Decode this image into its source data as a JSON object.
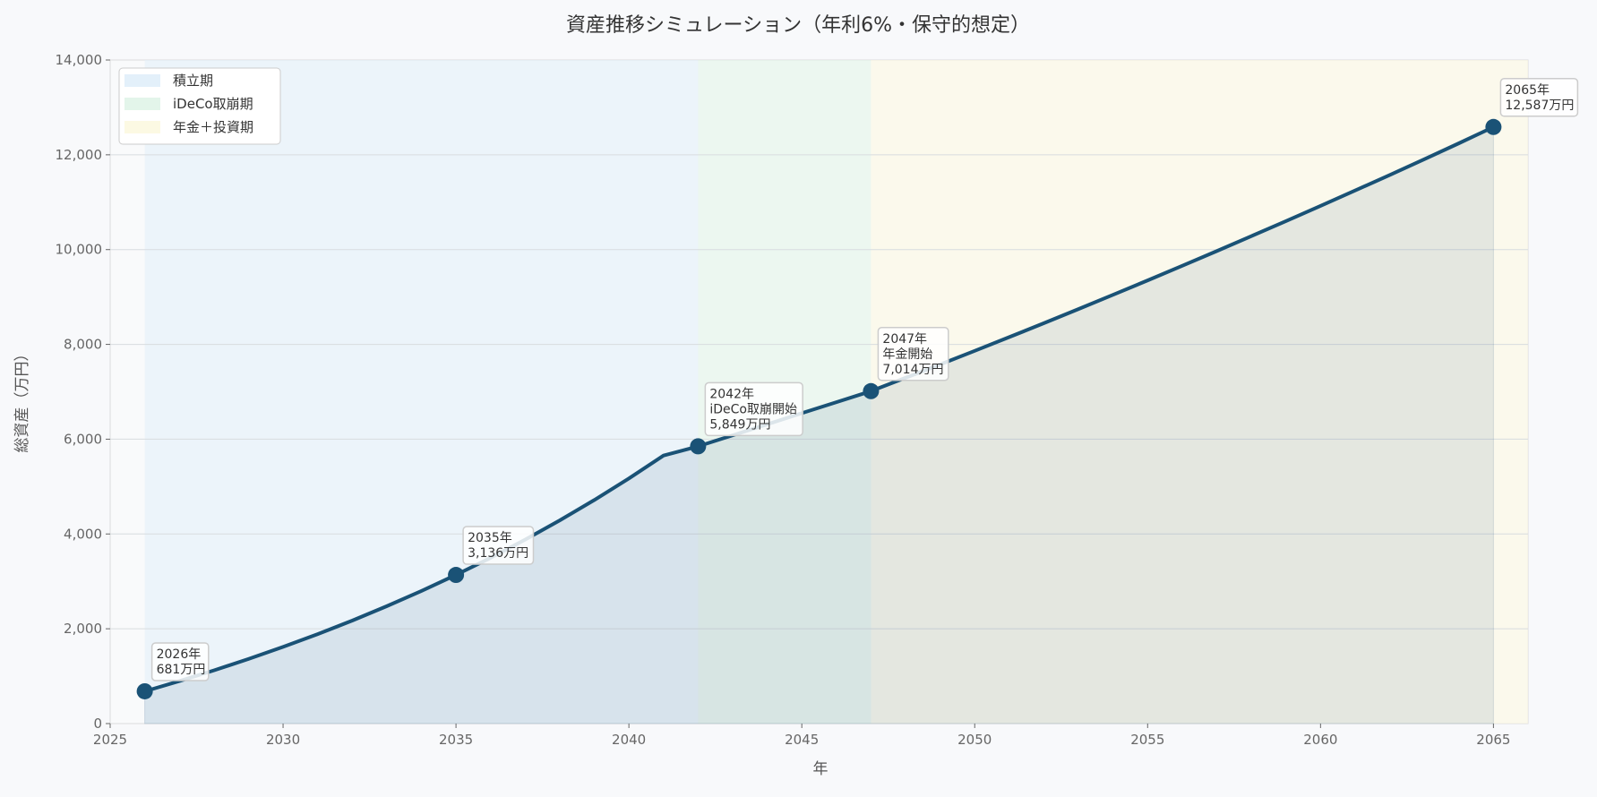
{
  "chart_data": {
    "type": "line",
    "title": "資産推移シミュレーション（年利6%・保守的想定）",
    "xlabel": "年",
    "ylabel": "総資産（万円）",
    "xlim": [
      2025,
      2066
    ],
    "ylim": [
      0,
      14000
    ],
    "xticks": [
      2025,
      2030,
      2035,
      2040,
      2045,
      2050,
      2055,
      2060,
      2065
    ],
    "yticks": [
      0,
      2000,
      4000,
      6000,
      8000,
      10000,
      12000,
      14000
    ],
    "ytick_labels": [
      "0",
      "2,000",
      "4,000",
      "6,000",
      "8,000",
      "10,000",
      "12,000",
      "14,000"
    ],
    "grid": "y",
    "legend_placement": "top-left",
    "line_color": "#1a5276",
    "phases": [
      {
        "name": "積立期",
        "start": 2026,
        "end": 2042,
        "color": "#e3f0fa"
      },
      {
        "name": "iDeCo取崩期",
        "start": 2042,
        "end": 2047,
        "color": "#e3f5ea"
      },
      {
        "name": "年金＋投資期",
        "start": 2047,
        "end": 2066,
        "color": "#fcf9e3"
      }
    ],
    "x": [
      2026,
      2027,
      2028,
      2029,
      2030,
      2031,
      2032,
      2033,
      2034,
      2035,
      2036,
      2037,
      2038,
      2039,
      2040,
      2041,
      2042,
      2043,
      2044,
      2045,
      2046,
      2047,
      2048,
      2049,
      2050,
      2051,
      2052,
      2053,
      2054,
      2055,
      2056,
      2057,
      2058,
      2059,
      2060,
      2061,
      2062,
      2063,
      2064,
      2065
    ],
    "y": [
      681,
      895,
      1122,
      1362,
      1617,
      1887,
      2173,
      2476,
      2798,
      3136,
      3497,
      3880,
      4286,
      4716,
      5172,
      5655,
      5849,
      6082,
      6315,
      6548,
      6781,
      7014,
      7294,
      7577,
      7864,
      8154,
      8448,
      8745,
      9046,
      9350,
      9658,
      9969,
      10283,
      10601,
      10922,
      11247,
      11575,
      11907,
      12242,
      12587
    ],
    "annotations": [
      {
        "x": 2026,
        "y": 681,
        "lines": [
          "2026年",
          "681万円"
        ]
      },
      {
        "x": 2035,
        "y": 3136,
        "lines": [
          "2035年",
          "3,136万円"
        ]
      },
      {
        "x": 2042,
        "y": 5849,
        "lines": [
          "2042年",
          "iDeCo取崩開始",
          "5,849万円"
        ]
      },
      {
        "x": 2047,
        "y": 7014,
        "lines": [
          "2047年",
          "年金開始",
          "7,014万円"
        ]
      },
      {
        "x": 2065,
        "y": 12587,
        "lines": [
          "2065年",
          "12,587万円"
        ]
      }
    ]
  }
}
